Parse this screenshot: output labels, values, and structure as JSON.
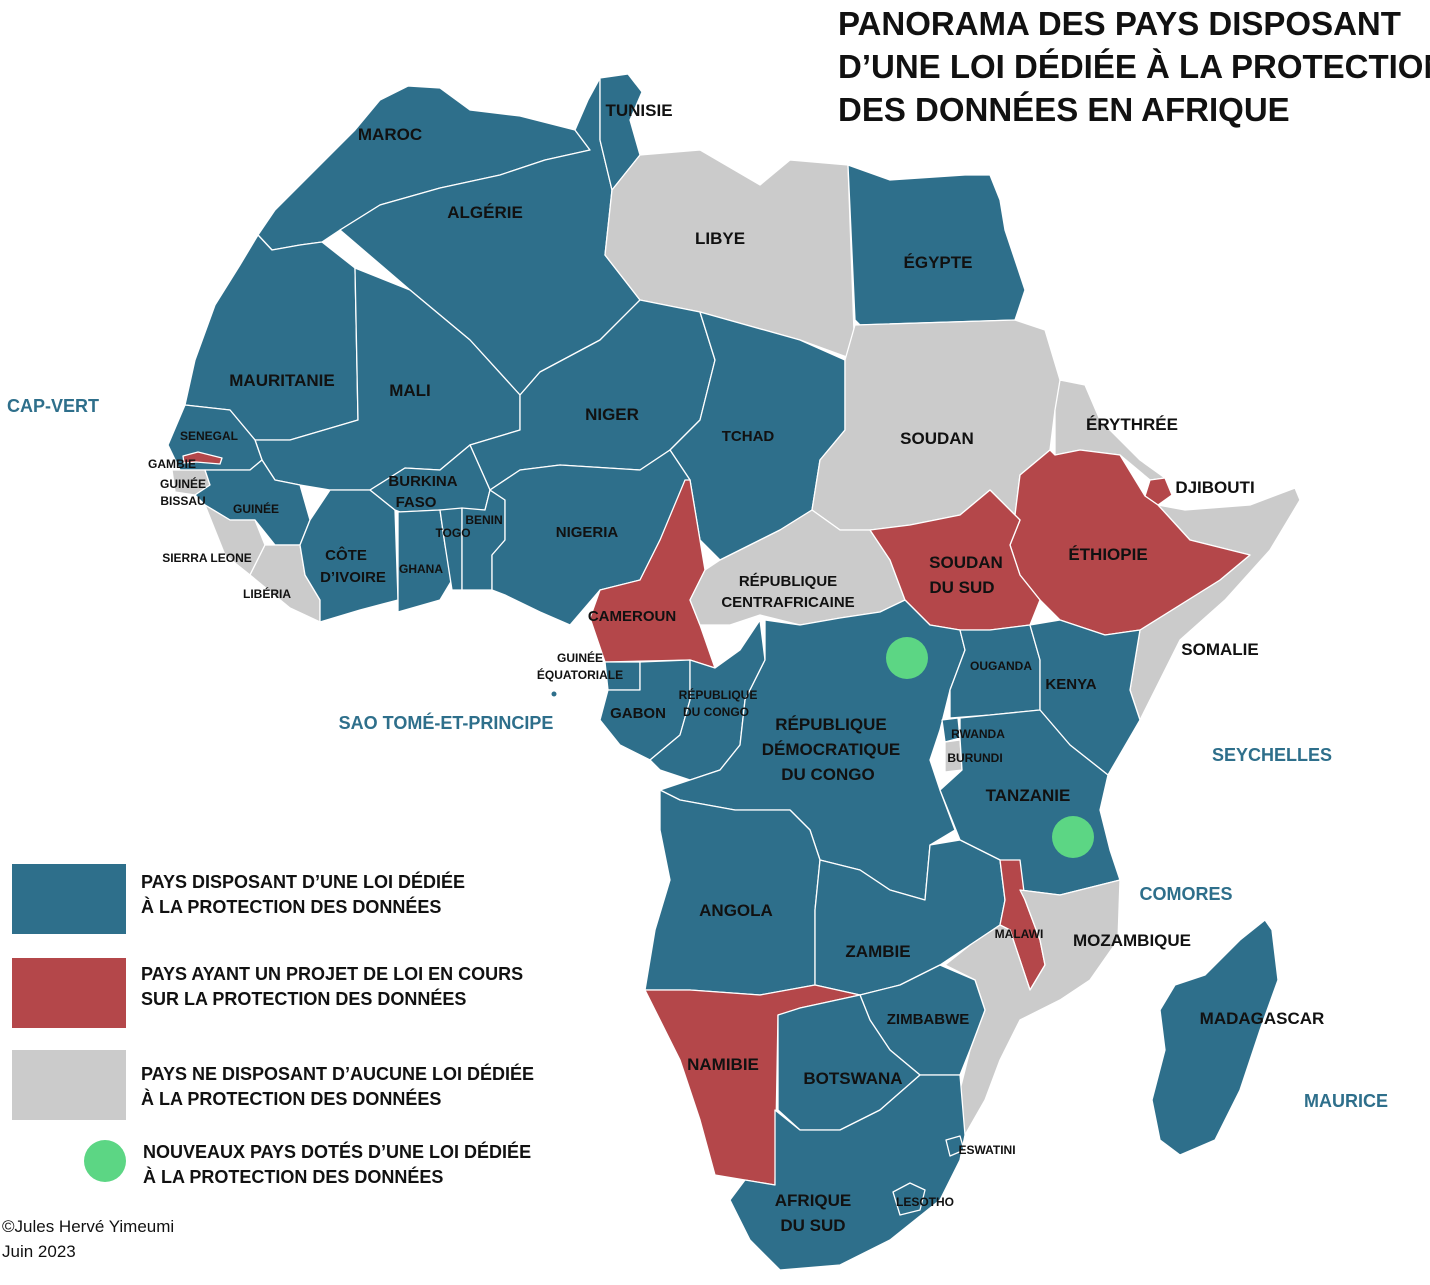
{
  "title": {
    "line1": "PANORAMA DES PAYS DISPOSANT",
    "line2": "D’UNE LOI DÉDIÉE À LA PROTECTION",
    "line3": "DES DONNÉES EN AFRIQUE"
  },
  "colors": {
    "law": "#2e6f8b",
    "draft": "#b4474a",
    "none": "#cbcbcb",
    "new": "#5cd684",
    "island_label": "#2e6f8b"
  },
  "legend": [
    {
      "key": "law",
      "line1": "PAYS DISPOSANT D’UNE LOI DÉDIÉE",
      "line2": "À LA PROTECTION DES DONNÉES"
    },
    {
      "key": "draft",
      "line1": "PAYS AYANT UN PROJET DE LOI EN COURS",
      "line2": "SUR LA PROTECTION DES DONNÉES"
    },
    {
      "key": "none",
      "line1": "PAYS NE DISPOSANT D’AUCUNE LOI DÉDIÉE",
      "line2": "À LA PROTECTION DES DONNÉES"
    },
    {
      "key": "new",
      "line1": "NOUVEAUX PAYS DOTÉS D’UNE LOI DÉDIÉE",
      "line2": "À LA PROTECTION DES DONNÉES"
    }
  ],
  "countries": {
    "maroc": {
      "name": "MAROC",
      "status": "law"
    },
    "algerie": {
      "name": "ALGÉRIE",
      "status": "law"
    },
    "tunisie": {
      "name": "TUNISIE",
      "status": "law"
    },
    "libye": {
      "name": "LIBYE",
      "status": "none"
    },
    "egypte": {
      "name": "ÉGYPTE",
      "status": "law"
    },
    "mauritanie": {
      "name": "MAURITANIE",
      "status": "law"
    },
    "mali": {
      "name": "MALI",
      "status": "law"
    },
    "niger": {
      "name": "NIGER",
      "status": "law"
    },
    "tchad": {
      "name": "TCHAD",
      "status": "law"
    },
    "soudan": {
      "name": "SOUDAN",
      "status": "none"
    },
    "erythree": {
      "name": "ÉRYTHRÉE",
      "status": "none"
    },
    "djibouti": {
      "name": "DJIBOUTI",
      "status": "draft"
    },
    "senegal": {
      "name": "SENEGAL",
      "status": "law"
    },
    "gambie": {
      "name": "GAMBIE",
      "status": "draft"
    },
    "guinee_bissau": {
      "name_line1": "GUINÉE",
      "name_line2": "BISSAU",
      "status": "none"
    },
    "guinee": {
      "name": "GUINÉE",
      "status": "law"
    },
    "sierra_leone": {
      "name": "SIERRA LEONE",
      "status": "none"
    },
    "liberia": {
      "name": "LIBÉRIA",
      "status": "none"
    },
    "cote_divoire": {
      "name_line1": "CÔTE",
      "name_line2": "D’IVOIRE",
      "status": "law"
    },
    "burkina": {
      "name_line1": "BURKINA",
      "name_line2": "FASO",
      "status": "law"
    },
    "ghana": {
      "name": "GHANA",
      "status": "law"
    },
    "togo": {
      "name": "TOGO",
      "status": "law"
    },
    "benin": {
      "name": "BENIN",
      "status": "law"
    },
    "nigeria": {
      "name": "NIGERIA",
      "status": "law"
    },
    "cameroun": {
      "name": "CAMEROUN",
      "status": "draft"
    },
    "rca": {
      "name_line1": "RÉPUBLIQUE",
      "name_line2": "CENTRAFRICAINE",
      "status": "none"
    },
    "soudan_sud": {
      "name_line1": "SOUDAN",
      "name_line2": "DU SUD",
      "status": "draft"
    },
    "ethiopie": {
      "name": "ÉTHIOPIE",
      "status": "draft"
    },
    "somalie": {
      "name": "SOMALIE",
      "status": "none"
    },
    "guinee_eq": {
      "name_line1": "GUINÉE",
      "name_line2": "ÉQUATORIALE",
      "status": "law"
    },
    "gabon": {
      "name": "GABON",
      "status": "law"
    },
    "congo": {
      "name_line1": "RÉPUBLIQUE",
      "name_line2": "DU CONGO",
      "status": "law"
    },
    "rdc": {
      "name_line1": "RÉPUBLIQUE",
      "name_line2": "DÉMOCRATIQUE",
      "name_line3": "DU CONGO",
      "status": "law"
    },
    "ouganda": {
      "name": "OUGANDA",
      "status": "law"
    },
    "kenya": {
      "name": "KENYA",
      "status": "law"
    },
    "rwanda": {
      "name": "RWANDA",
      "status": "law"
    },
    "burundi": {
      "name": "BURUNDI",
      "status": "none"
    },
    "tanzanie": {
      "name": "TANZANIE",
      "status": "law"
    },
    "angola": {
      "name": "ANGOLA",
      "status": "law"
    },
    "zambie": {
      "name": "ZAMBIE",
      "status": "law"
    },
    "malawi": {
      "name": "MALAWI",
      "status": "draft"
    },
    "mozambique": {
      "name": "MOZAMBIQUE",
      "status": "none"
    },
    "zimbabwe": {
      "name": "ZIMBABWE",
      "status": "law"
    },
    "namibie": {
      "name": "NAMIBIE",
      "status": "draft"
    },
    "botswana": {
      "name": "BOTSWANA",
      "status": "law"
    },
    "afrique_sud": {
      "name_line1": "AFRIQUE",
      "name_line2": "DU SUD",
      "status": "law"
    },
    "lesotho": {
      "name": "LESOTHO",
      "status": "law"
    },
    "eswatini": {
      "name": "ESWATINI",
      "status": "law"
    },
    "madagascar": {
      "name": "MADAGASCAR",
      "status": "law"
    }
  },
  "islands": {
    "cap_vert": "CAP-VERT",
    "sao_tome": "SAO TOMÉ-ET-PRINCIPE",
    "seychelles": "SEYCHELLES",
    "comores": "COMORES",
    "maurice": "MAURICE"
  },
  "new_law_markers": [
    "rdc",
    "tanzanie"
  ],
  "credit": {
    "author": "©Jules Hervé Yimeumi",
    "date": "Juin 2023"
  }
}
